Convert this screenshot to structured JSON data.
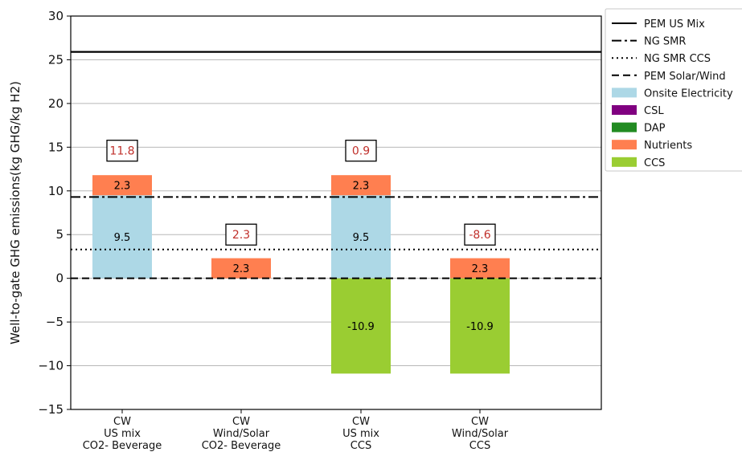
{
  "chart_data": {
    "type": "bar",
    "stacked": true,
    "ylabel": "Well-to-gate GHG emissions(kg GHG/kg H2)",
    "xlabel": "",
    "ylim": [
      -15,
      30
    ],
    "yticks": [
      -15,
      -10,
      -5,
      0,
      5,
      10,
      15,
      20,
      25,
      30
    ],
    "ytick_labels": [
      "−15",
      "−10",
      "−5",
      "0",
      "5",
      "10",
      "15",
      "20",
      "25",
      "30"
    ],
    "grid": "horizontal",
    "legend_position": "right, outside plot",
    "categories": [
      [
        "CW",
        "US mix",
        "CO2- Beverage"
      ],
      [
        "CW",
        "Wind/Solar",
        "CO2- Beverage"
      ],
      [
        "CW",
        "US mix",
        "CCS"
      ],
      [
        "CW",
        "Wind/Solar",
        "CCS"
      ]
    ],
    "series": [
      {
        "name": "Onsite Electricity",
        "color": "#add8e6",
        "values": [
          9.5,
          0,
          9.5,
          0
        ],
        "labels": [
          "9.5",
          "",
          "9.5",
          ""
        ]
      },
      {
        "name": "CSL",
        "color": "#800080",
        "values": [
          0,
          0,
          0,
          0
        ],
        "labels": [
          "",
          "",
          "",
          ""
        ]
      },
      {
        "name": "DAP",
        "color": "#228b22",
        "values": [
          0,
          0,
          0,
          0
        ],
        "labels": [
          "",
          "",
          "",
          ""
        ]
      },
      {
        "name": "Nutrients",
        "color": "#ff7f50",
        "values": [
          2.3,
          2.3,
          2.3,
          2.3
        ],
        "labels": [
          "2.3",
          "2.3",
          "2.3",
          "2.3"
        ]
      },
      {
        "name": "CCS",
        "color": "#9acd32",
        "values": [
          0,
          0,
          -10.9,
          -10.9
        ],
        "labels": [
          "",
          "",
          "-10.9",
          "-10.9"
        ]
      }
    ],
    "totals": [
      {
        "label": "11.8",
        "y": 14.6
      },
      {
        "label": "2.3",
        "y": 5.0
      },
      {
        "label": "0.9",
        "y": 14.6
      },
      {
        "label": "-8.6",
        "y": 5.0
      }
    ],
    "reference_lines": [
      {
        "name": "PEM US Mix",
        "y": 25.9,
        "style": "solid"
      },
      {
        "name": "NG SMR",
        "y": 9.3,
        "style": "dashdot"
      },
      {
        "name": "NG SMR CCS",
        "y": 3.3,
        "style": "dotted"
      },
      {
        "name": "PEM Solar/Wind",
        "y": 0.0,
        "style": "dashed"
      }
    ],
    "legend": [
      {
        "label": "PEM US Mix",
        "kind": "line",
        "style": "solid"
      },
      {
        "label": "NG SMR",
        "kind": "line",
        "style": "dashdot"
      },
      {
        "label": "NG SMR CCS",
        "kind": "line",
        "style": "dotted"
      },
      {
        "label": "PEM Solar/Wind",
        "kind": "line",
        "style": "dashed"
      },
      {
        "label": "Onsite Electricity",
        "kind": "patch",
        "color": "#add8e6"
      },
      {
        "label": "CSL",
        "kind": "patch",
        "color": "#800080"
      },
      {
        "label": "DAP",
        "kind": "patch",
        "color": "#228b22"
      },
      {
        "label": "Nutrients",
        "kind": "patch",
        "color": "#ff7f50"
      },
      {
        "label": "CCS",
        "kind": "patch",
        "color": "#9acd32"
      }
    ]
  }
}
